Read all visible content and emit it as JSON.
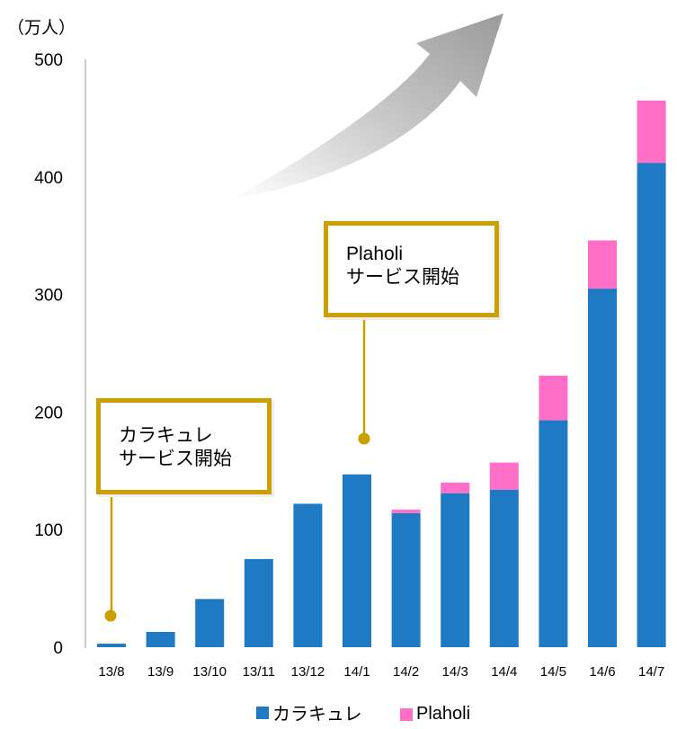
{
  "chart_data": {
    "type": "bar",
    "stacked": true,
    "unit_label": "（万人）",
    "categories": [
      "13/8",
      "13/9",
      "13/10",
      "13/11",
      "13/12",
      "14/1",
      "14/2",
      "14/3",
      "14/4",
      "14/5",
      "14/6",
      "14/7"
    ],
    "series": [
      {
        "name": "カラキュレ",
        "color": "#1f7ac4",
        "values": [
          3,
          13,
          41,
          75,
          122,
          147,
          114,
          131,
          134,
          193,
          305,
          412
        ]
      },
      {
        "name": "Plaholi",
        "color": "#ff6ec7",
        "values": [
          0,
          0,
          0,
          0,
          0,
          0,
          3,
          9,
          23,
          38,
          41,
          53
        ]
      }
    ],
    "ylim": [
      0,
      500
    ],
    "yticks": [
      "0",
      "100",
      "200",
      "300",
      "400",
      "500"
    ],
    "grid": false,
    "legend_position": "bottom",
    "annotations": [
      {
        "category": "13/8",
        "lines": [
          "カラキュレ",
          "サービス開始"
        ]
      },
      {
        "category": "14/1",
        "lines": [
          "Plaholi",
          "サービス開始"
        ]
      }
    ]
  }
}
